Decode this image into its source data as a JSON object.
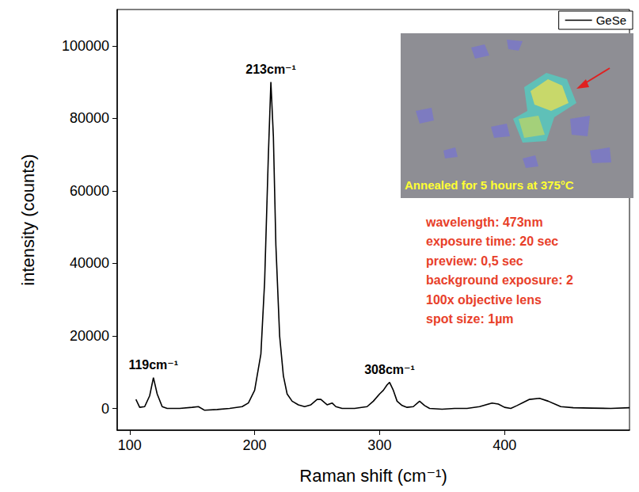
{
  "chart_data": {
    "type": "line",
    "x_label": "Raman shift (cm⁻¹)",
    "y_label": "intensity (counts)",
    "x": [
      105,
      108,
      112,
      116,
      119,
      122,
      126,
      130,
      140,
      150,
      155,
      160,
      170,
      180,
      190,
      195,
      200,
      205,
      208,
      211,
      213,
      215,
      217,
      220,
      223,
      226,
      230,
      235,
      240,
      245,
      250,
      253,
      258,
      262,
      265,
      270,
      280,
      290,
      295,
      300,
      303,
      306,
      308,
      311,
      314,
      318,
      322,
      327,
      332,
      336,
      340,
      350,
      360,
      370,
      380,
      390,
      395,
      400,
      405,
      410,
      420,
      428,
      435,
      445,
      455,
      470,
      485,
      500
    ],
    "series": [
      {
        "name": "GeSe",
        "color": "#000000",
        "line_style": "solid",
        "marker": "none",
        "values": [
          2500,
          300,
          500,
          3500,
          8500,
          4000,
          500,
          0,
          0,
          300,
          500,
          -500,
          -300,
          0,
          500,
          1500,
          5000,
          15000,
          35000,
          70000,
          90000,
          75000,
          45000,
          20000,
          9000,
          4000,
          2000,
          1000,
          500,
          1000,
          2500,
          2500,
          1000,
          1500,
          500,
          0,
          0,
          500,
          2000,
          4000,
          5000,
          6500,
          7200,
          5000,
          2000,
          800,
          300,
          500,
          2000,
          800,
          0,
          -200,
          0,
          0,
          500,
          1500,
          1200,
          300,
          0,
          800,
          2500,
          2800,
          2000,
          500,
          200,
          100,
          0,
          200
        ]
      }
    ],
    "xlim": [
      90,
      500
    ],
    "ylim": [
      -6000,
      110000
    ],
    "xticks": [
      100,
      200,
      300,
      400
    ],
    "yticks": [
      0,
      20000,
      40000,
      60000,
      80000,
      100000
    ],
    "grid": false,
    "legend": "upper right",
    "annotations": [
      {
        "text": "119cm⁻¹",
        "x": 119,
        "y": 8500
      },
      {
        "text": "213cm⁻¹",
        "x": 213,
        "y": 90000
      },
      {
        "text": "308cm⁻¹",
        "x": 308,
        "y": 7200
      }
    ],
    "text_box": [
      "wavelength: 473nm",
      "exposure time: 20 sec",
      "preview: 0,5 sec",
      "background exposure: 2",
      "100x objective lens",
      "spot size: 1µm"
    ],
    "inset": {
      "caption": "Annealed for 5 hours at 375°C"
    }
  }
}
